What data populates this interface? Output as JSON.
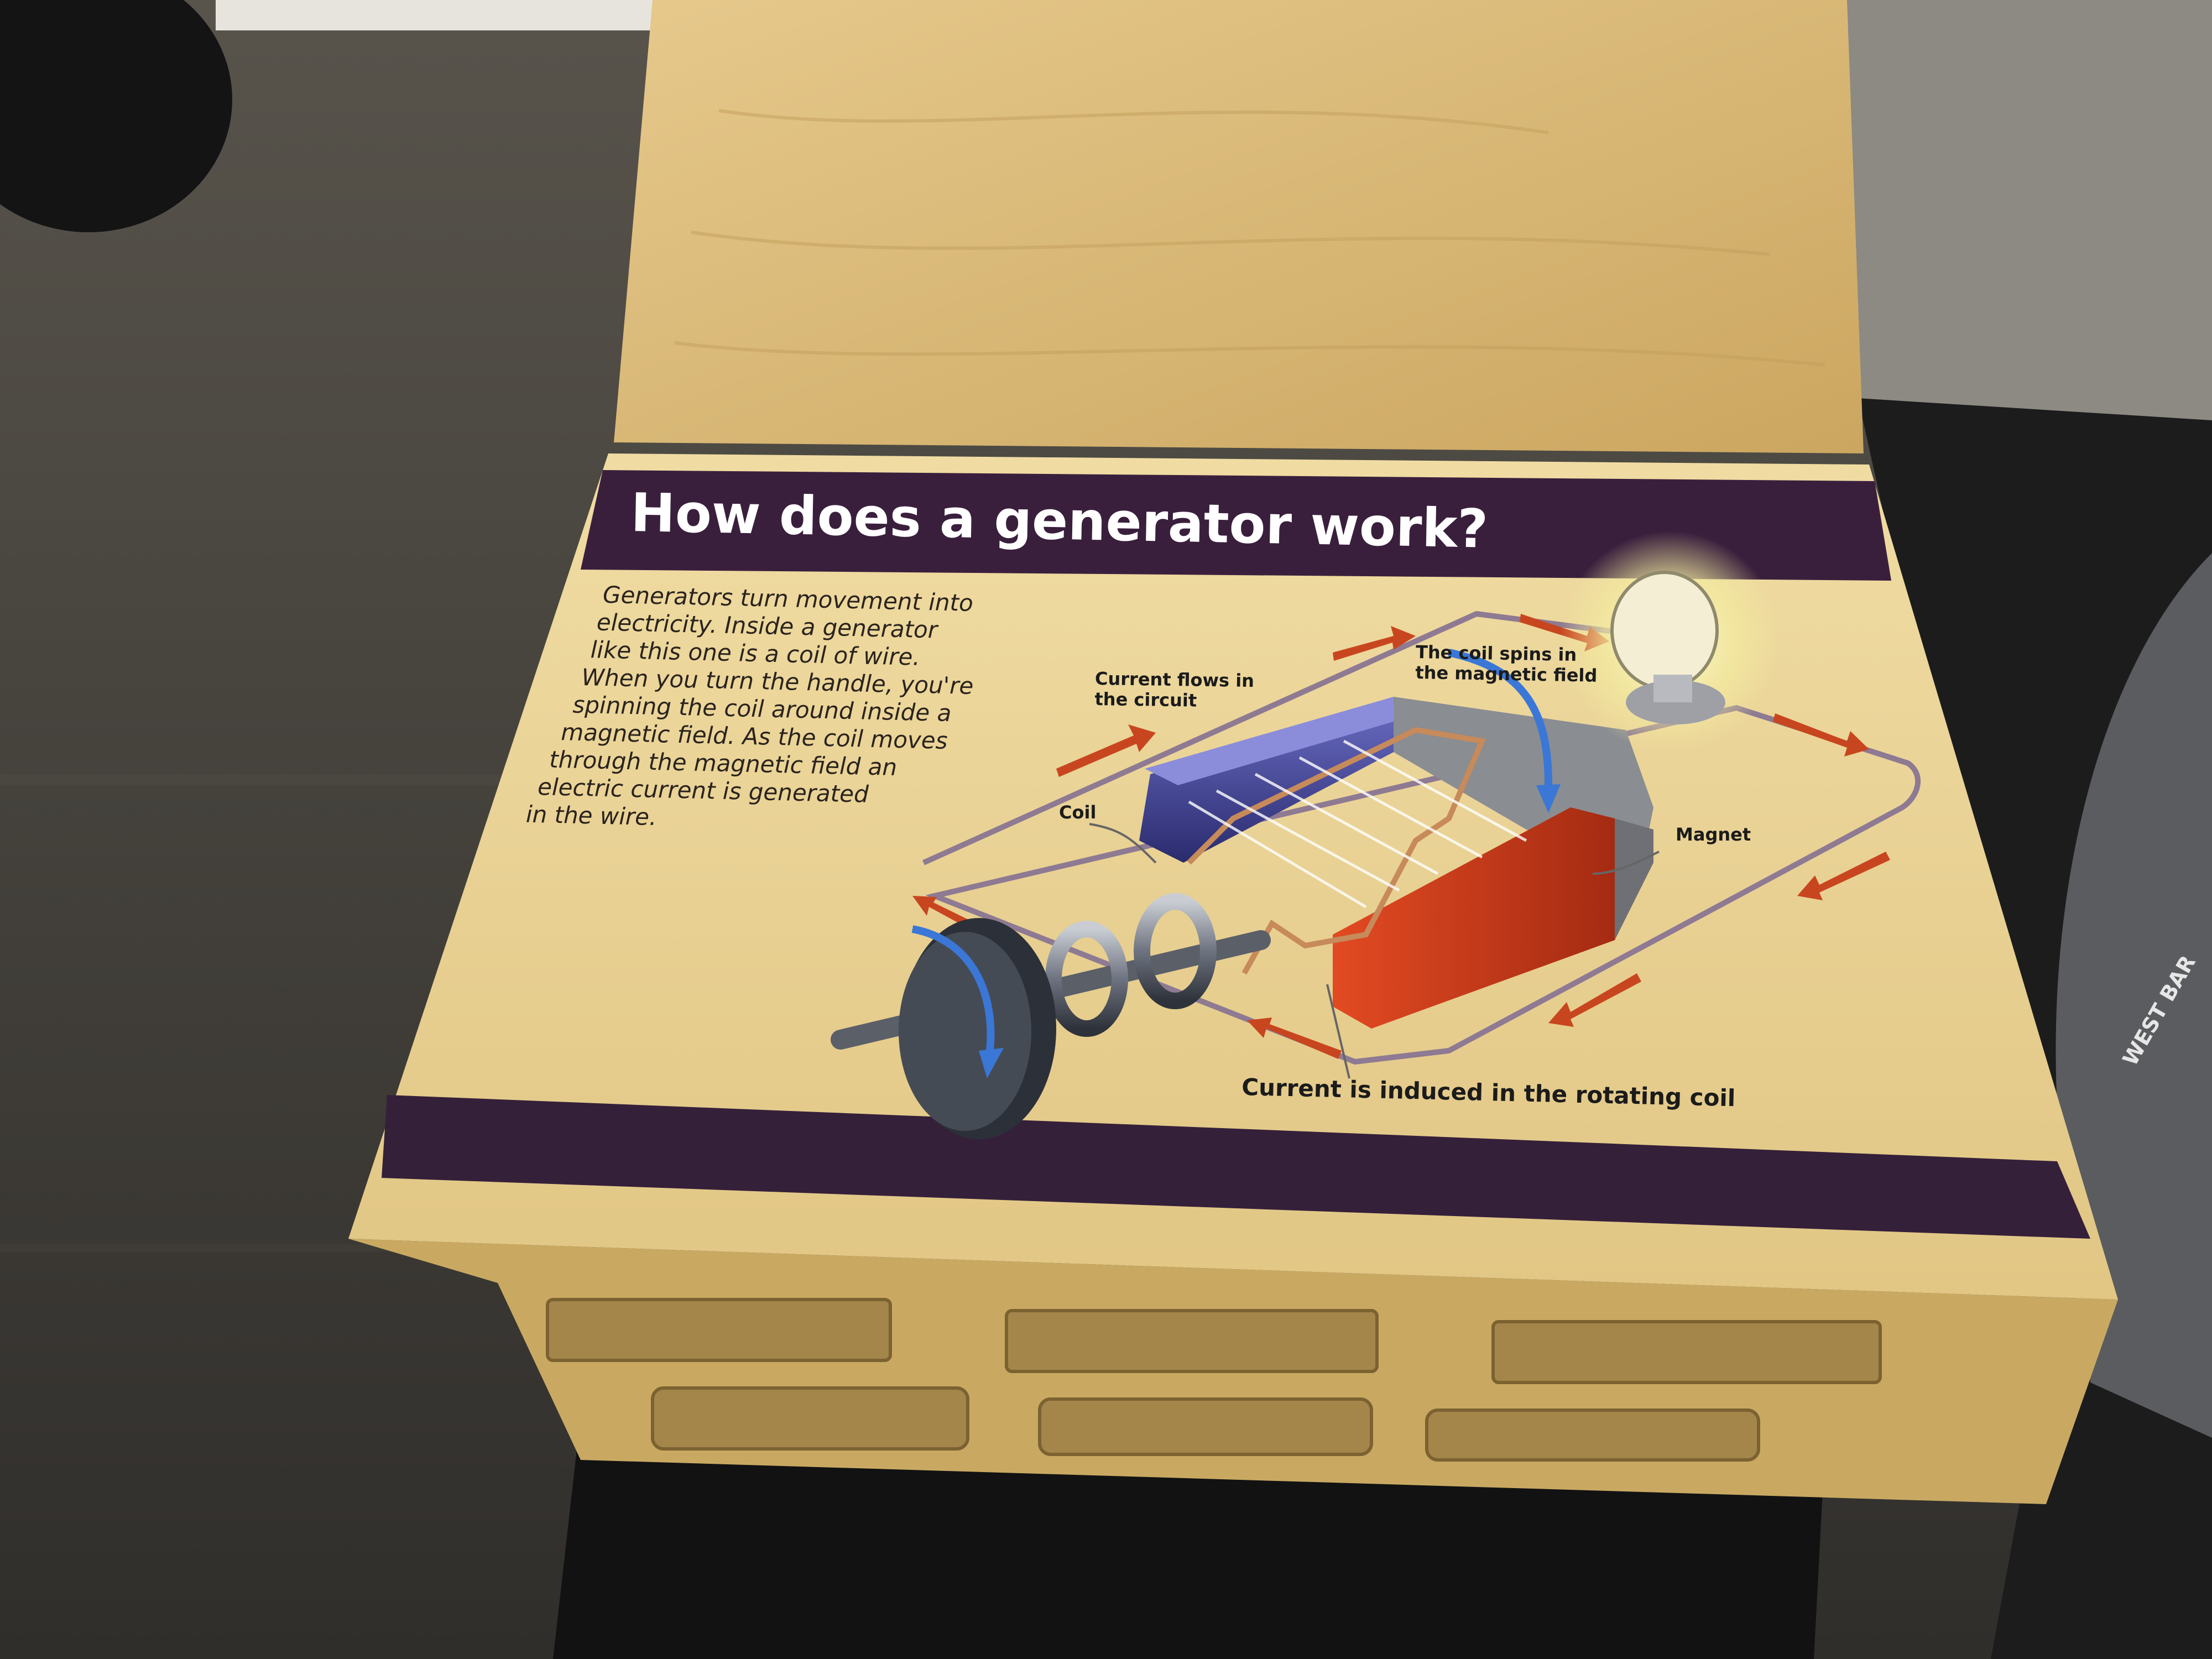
{
  "panel": {
    "title": "How does a generator work?",
    "body_lines": [
      "Generators turn movement into",
      "electricity. Inside a generator",
      "like this one is a coil of wire.",
      "When you turn the handle, you're",
      "spinning the coil around inside a",
      "magnetic field. As the coil moves",
      "through the magnetic field an",
      "electric current is generated",
      "in the wire."
    ]
  },
  "diagram": {
    "label_current_flows_1": "Current flows in",
    "label_current_flows_2": "the circuit",
    "label_coil_spins_1": "The coil spins in",
    "label_coil_spins_2": "the magnetic field",
    "label_coil": "Coil",
    "label_magnet": "Magnet",
    "label_induced": "Current is induced in the rotating coil"
  },
  "side_sign": {
    "text": "WEST BAR"
  },
  "colors": {
    "banner_purple": "#3a1f3d",
    "plywood": "#d9b674",
    "magnet_red": "#c63a1f",
    "magnet_blue": "#3d3f8f",
    "arrow_red": "#c8461f",
    "arrow_blue": "#3a77d6"
  }
}
